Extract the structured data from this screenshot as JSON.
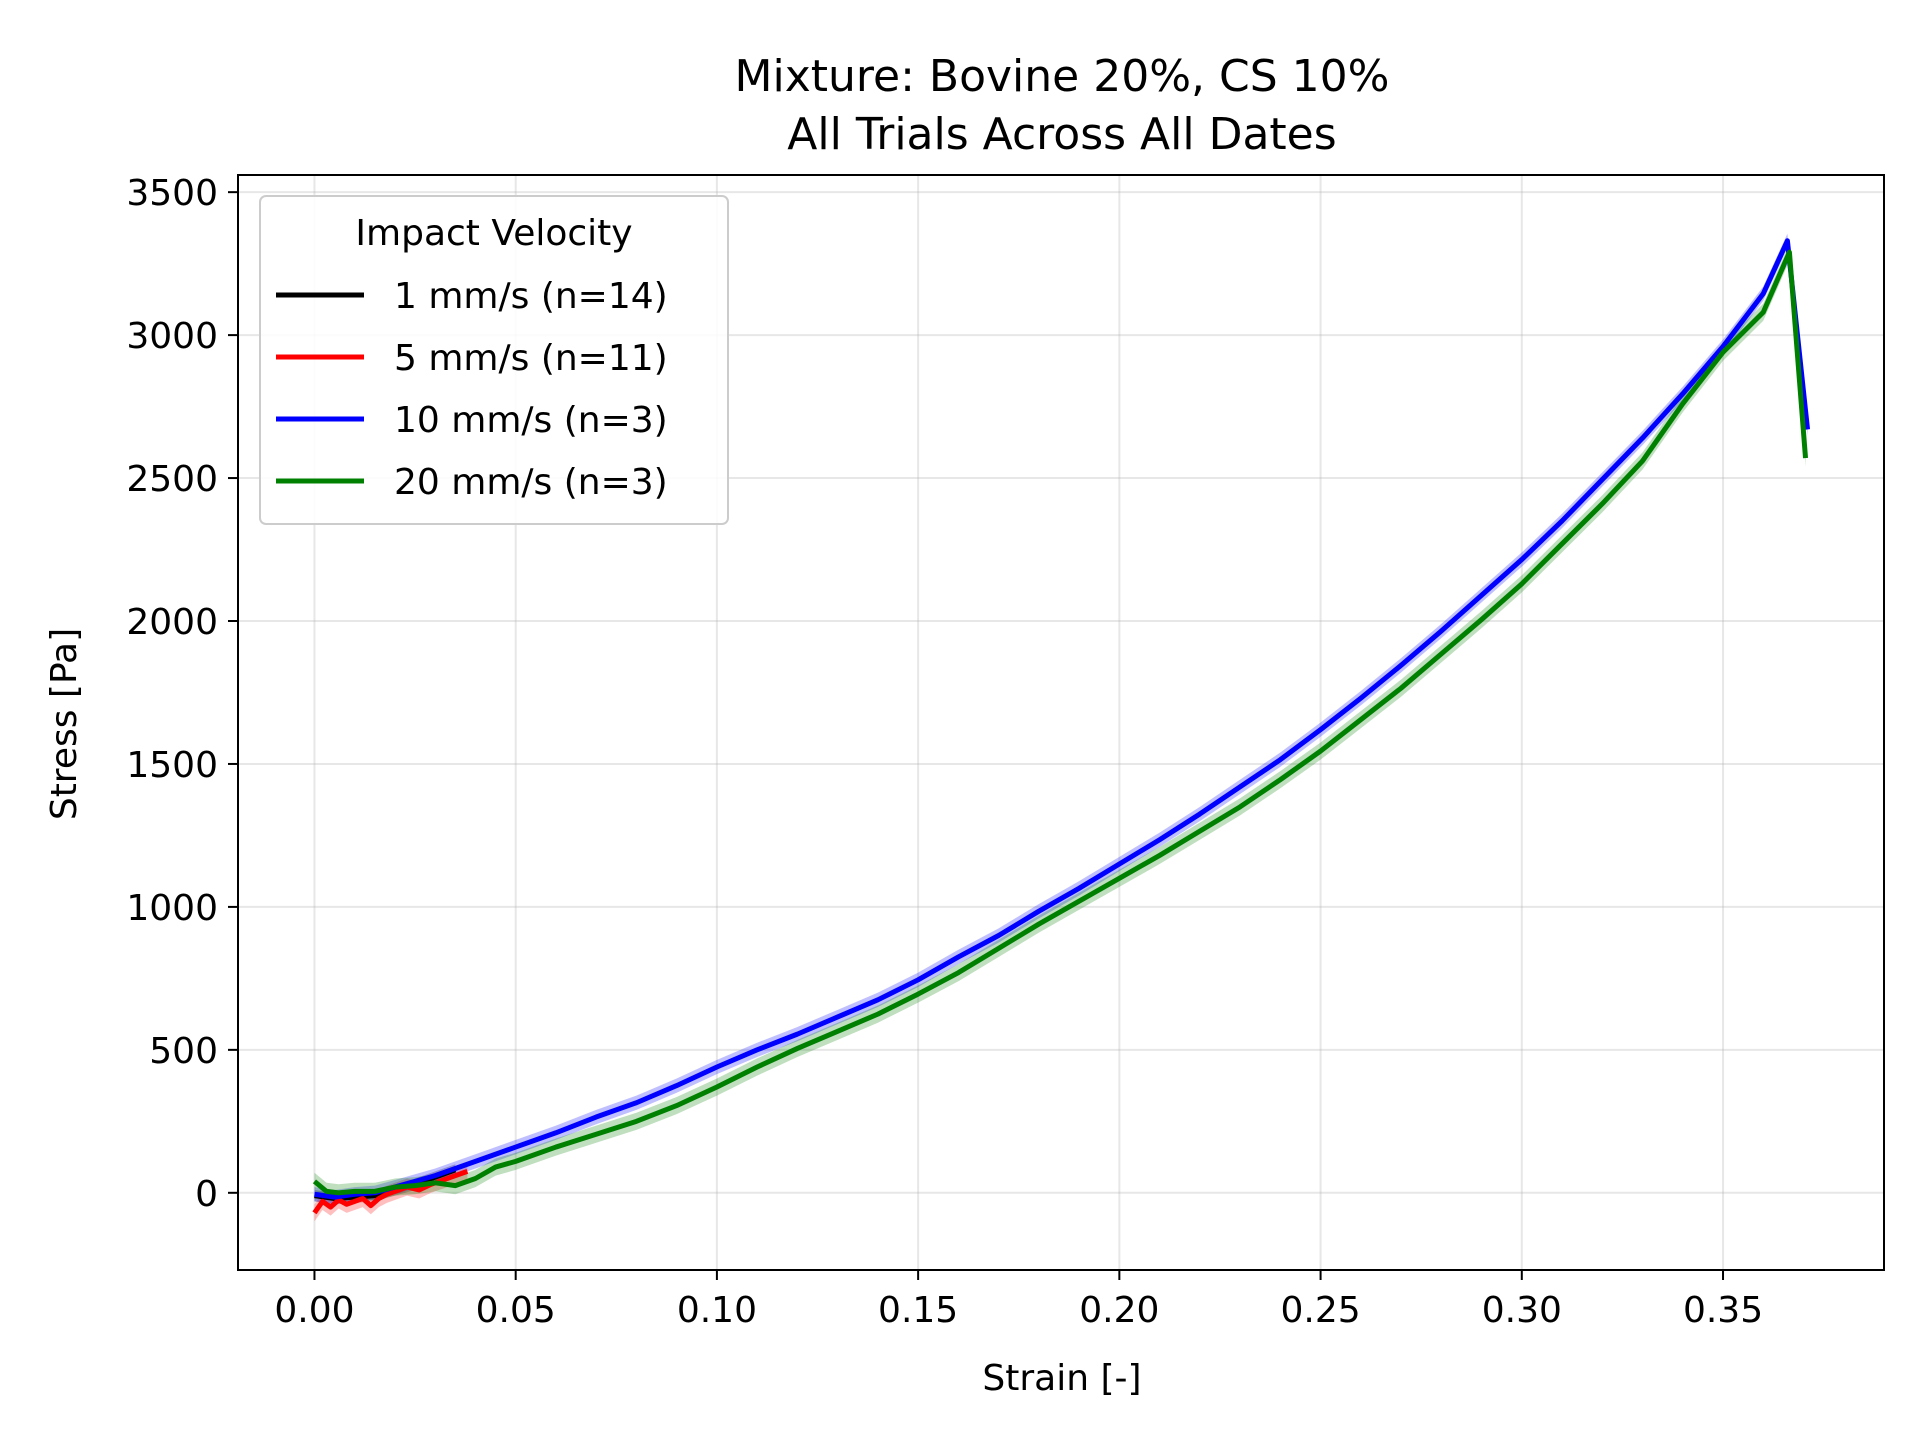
{
  "chart_data": {
    "type": "line",
    "title": "Mixture: Bovine 20%, CS 10%",
    "subtitle": "All Trials Across All Dates",
    "xlabel": "Strain [-]",
    "ylabel": "Stress [Pa]",
    "xlim": [
      -0.019,
      0.39
    ],
    "ylim": [
      -270,
      3560
    ],
    "xticks": [
      0.0,
      0.05,
      0.1,
      0.15,
      0.2,
      0.25,
      0.3,
      0.35
    ],
    "xtick_labels": [
      "0.00",
      "0.05",
      "0.10",
      "0.15",
      "0.20",
      "0.25",
      "0.30",
      "0.35"
    ],
    "yticks": [
      0,
      500,
      1000,
      1500,
      2000,
      2500,
      3000,
      3500
    ],
    "ytick_labels": [
      "0",
      "500",
      "1000",
      "1500",
      "2000",
      "2500",
      "3000",
      "3500"
    ],
    "grid": true,
    "legend": {
      "title": "Impact Velocity",
      "placement": "top-left"
    },
    "series": [
      {
        "name": "1 mm/s (n=14)",
        "color": "#000000",
        "band": 20,
        "x": [
          0.0,
          0.005,
          0.01,
          0.015,
          0.02,
          0.025,
          0.03,
          0.035
        ],
        "y": [
          -10,
          -20,
          -15,
          -10,
          10,
          30,
          55,
          80
        ]
      },
      {
        "name": "5 mm/s (n=11)",
        "color": "#ff0000",
        "band": 30,
        "x": [
          0.0,
          0.002,
          0.004,
          0.006,
          0.008,
          0.01,
          0.012,
          0.014,
          0.016,
          0.018,
          0.02,
          0.023,
          0.026,
          0.029,
          0.032,
          0.035,
          0.038
        ],
        "y": [
          -70,
          -30,
          -50,
          -25,
          -40,
          -30,
          -20,
          -45,
          -20,
          -5,
          5,
          20,
          10,
          30,
          45,
          60,
          75
        ]
      },
      {
        "name": "10 mm/s (n=3)",
        "color": "#0000ff",
        "band": 25,
        "x": [
          0.0,
          0.005,
          0.01,
          0.015,
          0.02,
          0.025,
          0.03,
          0.04,
          0.05,
          0.06,
          0.07,
          0.08,
          0.09,
          0.1,
          0.11,
          0.12,
          0.13,
          0.14,
          0.15,
          0.16,
          0.17,
          0.18,
          0.19,
          0.2,
          0.21,
          0.22,
          0.23,
          0.24,
          0.25,
          0.26,
          0.27,
          0.28,
          0.29,
          0.3,
          0.31,
          0.32,
          0.33,
          0.34,
          0.35,
          0.36,
          0.366,
          0.371
        ],
        "y": [
          -5,
          -15,
          -5,
          0,
          20,
          40,
          60,
          110,
          160,
          210,
          265,
          315,
          375,
          440,
          500,
          555,
          615,
          675,
          745,
          825,
          900,
          985,
          1065,
          1150,
          1235,
          1325,
          1420,
          1515,
          1620,
          1730,
          1845,
          1965,
          2090,
          2215,
          2350,
          2495,
          2640,
          2795,
          2960,
          3145,
          3330,
          2670
        ]
      },
      {
        "name": "20 mm/s (n=3)",
        "color": "#008000",
        "band": 30,
        "x": [
          0.0,
          0.003,
          0.006,
          0.01,
          0.015,
          0.02,
          0.025,
          0.03,
          0.035,
          0.04,
          0.045,
          0.05,
          0.06,
          0.07,
          0.08,
          0.09,
          0.1,
          0.11,
          0.12,
          0.13,
          0.14,
          0.15,
          0.16,
          0.17,
          0.18,
          0.19,
          0.2,
          0.21,
          0.22,
          0.23,
          0.24,
          0.25,
          0.26,
          0.27,
          0.28,
          0.29,
          0.3,
          0.31,
          0.32,
          0.33,
          0.34,
          0.35,
          0.36,
          0.3665,
          0.3705
        ],
        "y": [
          40,
          5,
          0,
          5,
          5,
          20,
          25,
          35,
          25,
          50,
          90,
          110,
          160,
          205,
          250,
          305,
          370,
          440,
          505,
          565,
          625,
          695,
          770,
          855,
          940,
          1020,
          1100,
          1180,
          1265,
          1350,
          1445,
          1545,
          1655,
          1765,
          1885,
          2005,
          2130,
          2270,
          2410,
          2560,
          2760,
          2940,
          3080,
          3290,
          2570
        ]
      }
    ]
  }
}
